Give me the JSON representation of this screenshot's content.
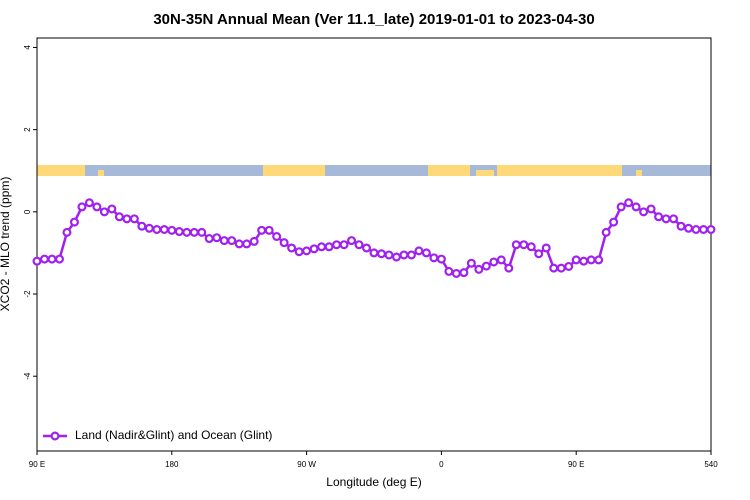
{
  "chart_data": {
    "type": "line",
    "title": "30N-35N Annual Mean (Ver 11.1_late)   2019-01-01 to 2023-04-30",
    "x_label": "Longitude (deg E)",
    "y_label": "XCO2 - MLO trend (ppm)",
    "x": [
      90,
      95,
      100,
      105,
      110,
      115,
      120,
      125,
      130,
      135,
      140,
      145,
      150,
      155,
      160,
      165,
      170,
      175,
      180,
      185,
      190,
      195,
      200,
      205,
      210,
      215,
      220,
      225,
      230,
      235,
      240,
      245,
      250,
      255,
      260,
      265,
      270,
      275,
      280,
      285,
      290,
      295,
      300,
      305,
      310,
      315,
      320,
      325,
      330,
      335,
      340,
      345,
      350,
      355,
      360,
      365,
      370,
      375,
      380,
      385,
      390,
      395,
      400,
      405,
      410,
      415,
      420,
      425,
      430,
      435,
      440,
      445,
      450,
      455,
      460,
      465,
      470,
      475,
      480,
      485,
      490,
      495,
      500,
      505,
      510,
      515,
      520,
      525,
      530,
      535,
      540
    ],
    "series": [
      {
        "name": "Land (Nadir&Glint) and Ocean (Glint)",
        "color": "#a020f0",
        "values": [
          -1.2,
          -1.15,
          -1.15,
          -1.15,
          -0.5,
          -0.25,
          0.12,
          0.22,
          0.12,
          0,
          0.07,
          -0.12,
          -0.17,
          -0.17,
          -0.35,
          -0.4,
          -0.43,
          -0.43,
          -0.45,
          -0.48,
          -0.5,
          -0.5,
          -0.5,
          -0.65,
          -0.63,
          -0.7,
          -0.7,
          -0.78,
          -0.78,
          -0.72,
          -0.45,
          -0.45,
          -0.6,
          -0.75,
          -0.88,
          -0.97,
          -0.95,
          -0.9,
          -0.85,
          -0.85,
          -0.8,
          -0.8,
          -0.7,
          -0.8,
          -0.88,
          -1.0,
          -1.02,
          -1.05,
          -1.1,
          -1.05,
          -1.05,
          -0.95,
          -1.0,
          -1.12,
          -1.15,
          -1.45,
          -1.5,
          -1.48,
          -1.25,
          -1.4,
          -1.32,
          -1.22,
          -1.17,
          -1.37,
          -0.8,
          -0.8,
          -0.85,
          -1.02,
          -0.88,
          -1.37,
          -1.37,
          -1.33,
          -1.17,
          -1.2,
          -1.17,
          -1.17,
          -0.5,
          -0.25,
          0.12,
          0.22,
          0.12,
          0,
          0.07,
          -0.12,
          -0.17,
          -0.17,
          -0.35,
          -0.4,
          -0.43,
          -0.43,
          -0.43
        ]
      }
    ],
    "xlim": [
      90,
      540
    ],
    "xticks": [
      {
        "value": 90,
        "label": "90 E"
      },
      180,
      {
        "value": 270,
        "label": "90 W"
      },
      {
        "value": 360,
        "label": "0"
      },
      {
        "value": 450,
        "label": "90 E"
      },
      540
    ],
    "ylim": [
      -5.82,
      4.23
    ],
    "yticks": [
      4,
      2,
      0,
      -2,
      -4
    ],
    "legend": "bottom-left"
  }
}
